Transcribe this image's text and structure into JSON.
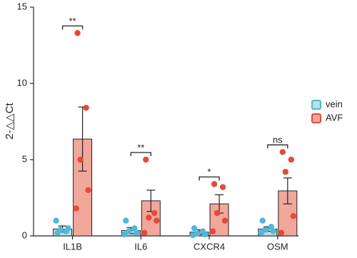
{
  "chart_data": {
    "type": "bar",
    "y_label": "2-△△Ct",
    "categories": [
      "IL1B",
      "IL6",
      "CXCR4",
      "OSM"
    ],
    "ylim": [
      0,
      15
    ],
    "yticks": [
      0,
      5,
      10,
      15
    ],
    "series": [
      {
        "name": "vein",
        "color": "#4fb8d6",
        "bar_color": "#b9dfe9",
        "values": [
          0.45,
          0.35,
          0.25,
          0.45
        ],
        "errors": [
          0.2,
          0.2,
          0.15,
          0.15
        ],
        "points": [
          [
            0.2,
            0.3,
            0.4,
            0.5,
            1.0
          ],
          [
            1.0,
            0.5,
            0.3,
            0.2,
            0.1
          ],
          [
            0.5,
            0.3,
            0.15,
            0.1,
            0.05
          ],
          [
            1.0,
            0.6,
            0.4,
            0.3,
            0.2
          ]
        ]
      },
      {
        "name": "AVF",
        "color": "#e5493a",
        "bar_color": "#f2a79b",
        "values": [
          6.35,
          2.3,
          2.1,
          2.95
        ],
        "errors": [
          2.1,
          0.7,
          0.6,
          0.85
        ],
        "points": [
          [
            13.3,
            8.4,
            5.0,
            3.0,
            1.8
          ],
          [
            5.0,
            1.5,
            1.2,
            1.0,
            0.2
          ],
          [
            3.4,
            3.2,
            1.5,
            1.0,
            0.3
          ],
          [
            5.5,
            5.0,
            4.2,
            1.3,
            0.2
          ]
        ]
      }
    ],
    "significance": [
      "**",
      "**",
      "*",
      "ns"
    ],
    "legend": "right"
  }
}
